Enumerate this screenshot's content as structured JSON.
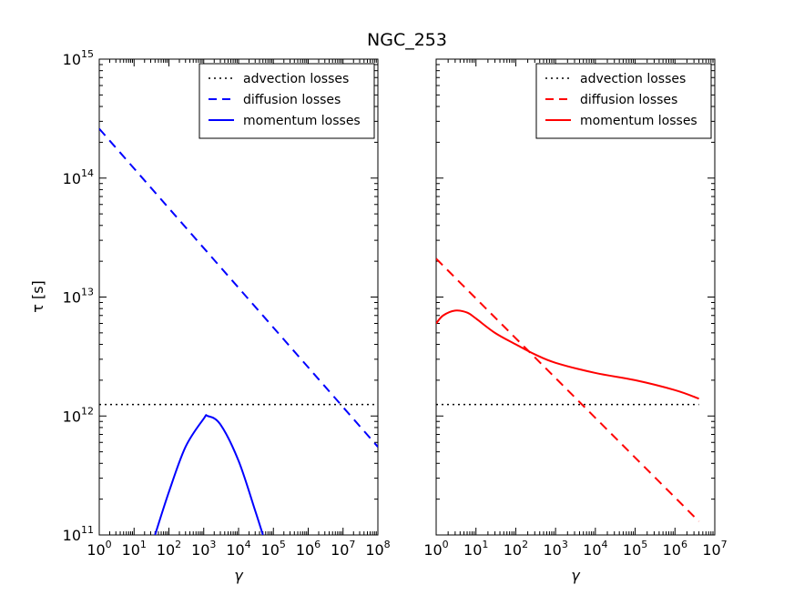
{
  "chart_data": {
    "title": "NGC_253",
    "ylabel": "τ [s]",
    "panels": [
      {
        "xlabel": "γ",
        "xscale": "log",
        "yscale": "log",
        "xlim": [
          1,
          100000000
        ],
        "ylim": [
          100000000000,
          1000000000000000
        ],
        "color": "#0000ff",
        "x_tick_exponents": [
          0,
          1,
          2,
          3,
          4,
          5,
          6,
          7,
          8
        ],
        "y_tick_exponents": [
          11,
          12,
          13,
          14,
          15
        ],
        "legend": [
          "advection losses",
          "diffusion losses",
          "momentum losses"
        ],
        "series": [
          {
            "name": "advection losses",
            "style": "dotted",
            "points": [
              [
                1,
                1250000000000.0
              ],
              [
                100000000.0,
                1250000000000.0
              ]
            ]
          },
          {
            "name": "diffusion losses",
            "style": "dashed",
            "points": [
              [
                1,
                260000000000000.0
              ],
              [
                100000000.0,
                550000000000.0
              ]
            ]
          },
          {
            "name": "momentum losses",
            "style": "solid",
            "points": [
              [
                40,
                100000000000.0
              ],
              [
                100,
                230000000000.0
              ],
              [
                300,
                550000000000.0
              ],
              [
                1000,
                950000000000.0
              ],
              [
                1300,
                1000000000000.0
              ],
              [
                3000,
                850000000000.0
              ],
              [
                10000,
                420000000000.0
              ],
              [
                30000,
                160000000000.0
              ],
              [
                50000,
                100000000000.0
              ]
            ]
          }
        ]
      },
      {
        "xlabel": "γ",
        "xscale": "log",
        "yscale": "log",
        "xlim": [
          1,
          10000000
        ],
        "ylim": [
          100000000000,
          1000000000000000
        ],
        "color": "#ff0000",
        "x_tick_exponents": [
          0,
          1,
          2,
          3,
          4,
          5,
          6,
          7
        ],
        "y_tick_exponents": [
          11,
          12,
          13,
          14,
          15
        ],
        "legend": [
          "advection losses",
          "diffusion losses",
          "momentum losses"
        ],
        "series": [
          {
            "name": "advection losses",
            "style": "dotted",
            "points": [
              [
                1,
                1250000000000.0
              ],
              [
                4000000,
                1250000000000.0
              ]
            ]
          },
          {
            "name": "diffusion losses",
            "style": "dashed",
            "points": [
              [
                1,
                21000000000000.0
              ],
              [
                4000000,
                130000000000.0
              ]
            ]
          },
          {
            "name": "momentum losses",
            "style": "solid",
            "points": [
              [
                1,
                6000000000000.0
              ],
              [
                1.5,
                7000000000000.0
              ],
              [
                3,
                7700000000000.0
              ],
              [
                6,
                7400000000000.0
              ],
              [
                10,
                6600000000000.0
              ],
              [
                30,
                5000000000000.0
              ],
              [
                100,
                4000000000000.0
              ],
              [
                300,
                3300000000000.0
              ],
              [
                1000,
                2800000000000.0
              ],
              [
                10000,
                2300000000000.0
              ],
              [
                100000,
                2000000000000.0
              ],
              [
                1000000,
                1650000000000.0
              ],
              [
                4000000,
                1400000000000.0
              ]
            ]
          }
        ]
      }
    ]
  }
}
